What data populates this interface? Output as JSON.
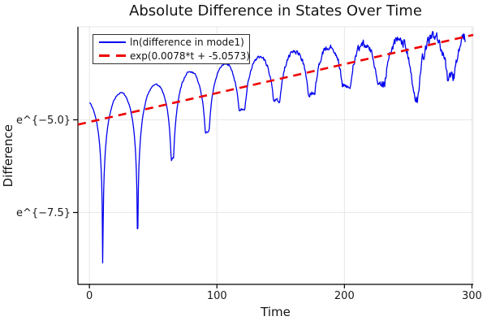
{
  "chart_data": {
    "type": "line",
    "title": "Absolute Difference in States Over Time",
    "xlabel": "Time",
    "ylabel": "Difference",
    "background": "#ffffff",
    "grid": true,
    "legend_position": "top-left",
    "xlim": [
      -9,
      301
    ],
    "ylim_ln": [
      -9.44,
      -2.49
    ],
    "x_ticks": [
      {
        "t": 0,
        "label": "0"
      },
      {
        "t": 100,
        "label": "100"
      },
      {
        "t": 200,
        "label": "200"
      },
      {
        "t": 300,
        "label": "300"
      }
    ],
    "y_ticks": [
      {
        "ln": -5.0,
        "label": "e^{−5.0}"
      },
      {
        "ln": -7.5,
        "label": "e^{−7.5}"
      }
    ],
    "axis_color": "#000000",
    "grid_color": "#e4e4e4",
    "tick_label_color": "#1a1a1a",
    "series": [
      {
        "name": "ln(difference in mode1)",
        "color": "#0000ee",
        "style": "solid",
        "line_width": 1.3,
        "t_range": [
          0,
          295
        ],
        "sample_dt": 0.4,
        "model": "ln_of_envelope_times_abs_sin_plus_noise_floor",
        "envelope_ln_profile": [
          [
            0,
            -4.47
          ],
          [
            52,
            -4.05
          ],
          [
            72,
            -3.76
          ],
          [
            100,
            -3.52
          ],
          [
            131,
            -3.32
          ],
          [
            155,
            -3.18
          ],
          [
            185,
            -3.03
          ],
          [
            213,
            -2.96
          ],
          [
            242,
            -2.85
          ],
          [
            270,
            -2.76
          ],
          [
            295,
            -2.72
          ]
        ],
        "oscillation_period": 27.3,
        "first_dip_t": 10.5,
        "dip_depth_profile": [
          [
            0,
            5.2
          ],
          [
            10.5,
            5.0
          ],
          [
            37.8,
            4.05
          ],
          [
            65.1,
            2.2
          ],
          [
            92.4,
            1.75
          ],
          [
            119.7,
            1.32
          ],
          [
            147,
            1.26
          ],
          [
            174.3,
            1.2
          ],
          [
            201.6,
            1.05
          ],
          [
            228.9,
            1.1
          ],
          [
            256.2,
            1.6
          ],
          [
            283.5,
            1.15
          ],
          [
            295,
            1.0
          ]
        ],
        "noise": {
          "base": 0.012,
          "growth": 0.14,
          "exponent": 2.0,
          "corr": 0.45,
          "seed": 123457
        },
        "clip_ln": [
          -9.38,
          -2.5
        ]
      },
      {
        "name": "exp(0.0078*t + -5.0573)",
        "color": "#ee0000",
        "style": "dashed",
        "line_width": 2.6,
        "dash": [
          10,
          7
        ],
        "slope": 0.0078,
        "intercept": -5.0573,
        "t_range": [
          -9,
          301
        ]
      }
    ]
  }
}
